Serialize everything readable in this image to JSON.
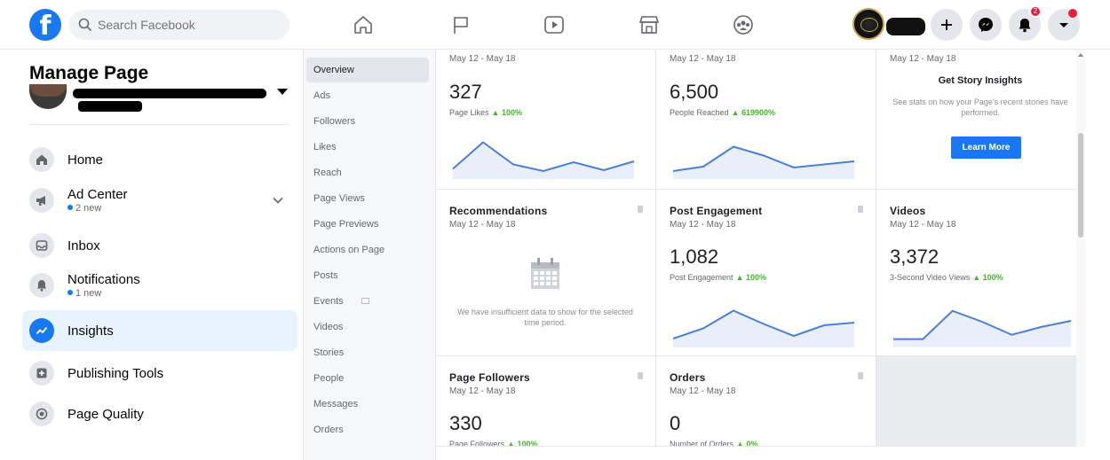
{
  "topbar": {
    "search_placeholder": "Search Facebook",
    "nav_icons": [
      "home-icon",
      "pages-flag-icon",
      "watch-icon",
      "marketplace-icon",
      "groups-icon"
    ],
    "notification_count": "2"
  },
  "sidebar": {
    "title": "Manage Page",
    "items": [
      {
        "label": "Home",
        "sub": ""
      },
      {
        "label": "Ad Center",
        "sub": "2 new"
      },
      {
        "label": "Inbox",
        "sub": ""
      },
      {
        "label": "Notifications",
        "sub": "1 new"
      },
      {
        "label": "Insights",
        "sub": ""
      },
      {
        "label": "Publishing Tools",
        "sub": ""
      },
      {
        "label": "Page Quality",
        "sub": ""
      }
    ]
  },
  "subnav": {
    "items": [
      "Overview",
      "Ads",
      "Followers",
      "Likes",
      "Reach",
      "Page Views",
      "Page Previews",
      "Actions on Page",
      "Posts",
      "Events",
      "Videos",
      "Stories",
      "People",
      "Messages",
      "Orders"
    ]
  },
  "cards": {
    "page_likes": {
      "date": "May 12 - May 18",
      "value": "327",
      "metric": "Page Likes",
      "change": "▲ 100%",
      "spark": [
        0.15,
        0.75,
        0.25,
        0.1,
        0.3,
        0.12,
        0.32
      ]
    },
    "people_reached": {
      "date": "May 12 - May 18",
      "value": "6,500",
      "metric": "People Reached",
      "change": "▲ 619900%",
      "spark": [
        0.1,
        0.2,
        0.65,
        0.45,
        0.18,
        0.25,
        0.32
      ]
    },
    "stories": {
      "date": "May 12 - May 18",
      "title": "Get Story Insights",
      "desc": "See stats on how your Page's recent stories have performed.",
      "button": "Learn More"
    },
    "recommendations": {
      "title": "Recommendations",
      "date": "May 12 - May 18",
      "desc": "We have insufficient data to show for the selected time period."
    },
    "post_engagement": {
      "title": "Post Engagement",
      "date": "May 12 - May 18",
      "value": "1,082",
      "metric": "Post Engagement",
      "change": "▲ 100%",
      "spark": [
        0.12,
        0.35,
        0.75,
        0.45,
        0.18,
        0.42,
        0.48
      ]
    },
    "videos": {
      "title": "Videos",
      "date": "May 12 - May 18",
      "value": "3,372",
      "metric": "3-Second Video Views",
      "change": "▲ 100%",
      "spark": [
        0.1,
        0.1,
        0.75,
        0.5,
        0.2,
        0.38,
        0.52
      ]
    },
    "page_followers": {
      "title": "Page Followers",
      "date": "May 12 - May 18",
      "value": "330",
      "metric": "Page Followers",
      "change": "▲ 100%"
    },
    "orders": {
      "title": "Orders",
      "date": "May 12 - May 18",
      "value": "0",
      "metric": "Number of Orders",
      "change": "▲ 0%"
    }
  },
  "colors": {
    "brand": "#1877f2",
    "positive": "#42b72a",
    "spark_line": "#4a7fd6",
    "spark_fill": "#e8eefa"
  }
}
